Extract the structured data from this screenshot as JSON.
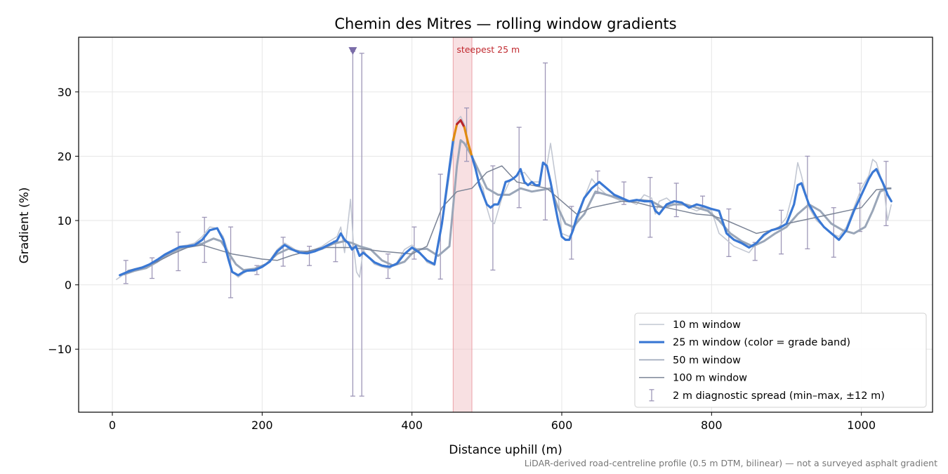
{
  "chart_data": {
    "type": "line",
    "title": "Chemin des Mitres — rolling window gradients",
    "xlabel": "Distance uphill (m)",
    "ylabel": "Gradient (%)",
    "xlim": [
      -45,
      1095
    ],
    "ylim": [
      -19.8,
      38.5
    ],
    "xticks": [
      0,
      200,
      400,
      600,
      800,
      1000
    ],
    "yticks": [
      -10,
      0,
      10,
      20,
      30
    ],
    "ytick_labels": [
      "−10",
      "0",
      "10",
      "20",
      "30"
    ],
    "grid": true,
    "legend_position": "lower-right",
    "footnote": "LiDAR-derived road-centreline profile (0.5 m DTM, bilinear) — not a surveyed asphalt gradient",
    "highlight": {
      "label": "steepest 25 m",
      "x_start": 455,
      "x_end": 480
    },
    "peak_marker": {
      "x": 321,
      "y": 36.3
    },
    "grade_band_colors": {
      "default": "#3a78d4",
      "steep": "#e08a10",
      "very_steep": "#b8262c"
    },
    "series": [
      {
        "name": "10 m window",
        "color": "#c2c7d2",
        "x": [
          5,
          10,
          20,
          30,
          40,
          50,
          60,
          70,
          80,
          90,
          100,
          110,
          120,
          130,
          140,
          148,
          155,
          160,
          168,
          175,
          180,
          190,
          200,
          210,
          220,
          230,
          240,
          250,
          260,
          270,
          280,
          290,
          300,
          305,
          310,
          315,
          318,
          322,
          326,
          330,
          335,
          340,
          350,
          360,
          370,
          380,
          390,
          400,
          410,
          420,
          430,
          440,
          450,
          455,
          460,
          465,
          470,
          475,
          480,
          485,
          490,
          495,
          500,
          505,
          510,
          520,
          530,
          540,
          550,
          560,
          570,
          575,
          580,
          585,
          590,
          595,
          600,
          610,
          620,
          630,
          640,
          650,
          660,
          670,
          680,
          690,
          700,
          710,
          720,
          725,
          730,
          740,
          750,
          760,
          770,
          780,
          790,
          800,
          810,
          820,
          830,
          840,
          850,
          860,
          870,
          880,
          890,
          900,
          910,
          915,
          920,
          930,
          940,
          950,
          960,
          970,
          980,
          990,
          1000,
          1010,
          1015,
          1020,
          1030,
          1035,
          1040
        ],
        "y": [
          0.8,
          1.2,
          2.0,
          2.3,
          2.6,
          3.0,
          3.8,
          4.5,
          5.3,
          6.0,
          6.2,
          6.5,
          7.5,
          9.0,
          8.8,
          7.5,
          5.0,
          2.0,
          1.2,
          1.8,
          2.2,
          2.1,
          2.8,
          3.8,
          5.5,
          6.5,
          5.8,
          5.0,
          5.0,
          5.5,
          6.0,
          6.8,
          7.5,
          9.0,
          5.0,
          10.0,
          13.3,
          6.0,
          2.0,
          1.2,
          5.5,
          4.5,
          3.2,
          2.8,
          2.5,
          3.5,
          5.5,
          6.2,
          5.2,
          3.5,
          3.0,
          9.0,
          17.0,
          21.0,
          25.5,
          26.2,
          25.0,
          22.0,
          20.0,
          18.0,
          16.0,
          15.0,
          12.0,
          10.0,
          9.5,
          13.5,
          16.0,
          17.0,
          17.5,
          16.0,
          16.0,
          19.0,
          18.5,
          22.0,
          18.0,
          14.0,
          8.0,
          7.5,
          9.5,
          13.5,
          16.5,
          15.0,
          14.0,
          13.5,
          13.0,
          13.0,
          12.5,
          14.0,
          13.5,
          11.0,
          13.0,
          13.5,
          12.5,
          12.5,
          12.0,
          11.5,
          12.0,
          11.5,
          8.0,
          7.0,
          6.0,
          5.5,
          5.0,
          6.5,
          7.5,
          8.5,
          9.0,
          10.5,
          15.0,
          19.0,
          17.0,
          12.0,
          10.0,
          9.0,
          8.0,
          7.5,
          9.0,
          12.0,
          15.0,
          17.0,
          19.5,
          19.0,
          15.0,
          10.0,
          12.5
        ]
      },
      {
        "name": "25 m window (color = grade band)",
        "color": "#3a78d4",
        "x": [
          10,
          20,
          30,
          40,
          50,
          60,
          70,
          80,
          90,
          100,
          110,
          120,
          130,
          140,
          148,
          155,
          160,
          168,
          175,
          180,
          190,
          200,
          210,
          220,
          230,
          240,
          250,
          260,
          270,
          280,
          290,
          300,
          305,
          310,
          315,
          320,
          325,
          330,
          335,
          340,
          350,
          360,
          370,
          380,
          390,
          400,
          410,
          420,
          430,
          440,
          448,
          455,
          460,
          465,
          470,
          475,
          480,
          485,
          490,
          495,
          500,
          505,
          510,
          515,
          520,
          525,
          530,
          535,
          540,
          545,
          550,
          555,
          560,
          565,
          570,
          575,
          580,
          585,
          590,
          595,
          600,
          605,
          610,
          615,
          620,
          630,
          640,
          650,
          660,
          670,
          680,
          690,
          700,
          710,
          720,
          725,
          730,
          740,
          750,
          760,
          770,
          780,
          790,
          800,
          810,
          820,
          830,
          840,
          850,
          860,
          870,
          880,
          890,
          900,
          910,
          915,
          920,
          930,
          940,
          950,
          960,
          970,
          980,
          990,
          1000,
          1010,
          1015,
          1020,
          1030,
          1035,
          1040
        ],
        "y": [
          1.5,
          2.0,
          2.4,
          2.7,
          3.2,
          3.9,
          4.7,
          5.3,
          5.9,
          6.0,
          6.2,
          7.0,
          8.5,
          8.8,
          7.0,
          4.0,
          2.0,
          1.5,
          2.0,
          2.2,
          2.3,
          2.8,
          3.6,
          5.2,
          6.2,
          5.5,
          5.0,
          4.9,
          5.2,
          5.7,
          6.3,
          6.9,
          8.0,
          7.0,
          6.5,
          5.5,
          6.0,
          4.5,
          5.0,
          4.5,
          3.5,
          3.0,
          2.8,
          3.3,
          4.8,
          5.8,
          5.0,
          3.8,
          3.2,
          9.5,
          16.5,
          22.5,
          25.0,
          25.6,
          24.5,
          22.0,
          20.0,
          18.0,
          15.5,
          14.0,
          12.5,
          12.0,
          12.5,
          12.5,
          14.0,
          16.0,
          16.2,
          16.5,
          17.0,
          18.0,
          16.0,
          15.5,
          16.0,
          15.5,
          15.5,
          19.0,
          18.5,
          16.0,
          13.0,
          10.0,
          7.5,
          7.0,
          7.0,
          8.5,
          10.5,
          13.5,
          15.0,
          16.0,
          15.0,
          14.0,
          13.5,
          13.0,
          13.2,
          13.0,
          13.0,
          11.5,
          11.0,
          12.5,
          13.0,
          12.8,
          12.0,
          12.5,
          12.2,
          11.8,
          11.5,
          8.0,
          7.0,
          6.5,
          5.8,
          6.5,
          7.8,
          8.5,
          8.8,
          9.5,
          12.5,
          15.5,
          15.8,
          12.5,
          10.5,
          9.0,
          8.0,
          7.0,
          8.5,
          11.5,
          14.0,
          16.5,
          17.5,
          18.0,
          15.5,
          14.0,
          13.0
        ]
      },
      {
        "name": "50 m window",
        "color": "#9aa6b8",
        "x": [
          15,
          30,
          45,
          60,
          75,
          90,
          105,
          120,
          135,
          145,
          155,
          165,
          175,
          190,
          205,
          220,
          235,
          250,
          265,
          280,
          295,
          310,
          320,
          330,
          345,
          360,
          375,
          390,
          405,
          420,
          435,
          450,
          460,
          465,
          470,
          480,
          490,
          500,
          515,
          530,
          545,
          560,
          575,
          585,
          595,
          605,
          615,
          630,
          645,
          660,
          675,
          690,
          705,
          720,
          735,
          750,
          765,
          780,
          795,
          810,
          825,
          840,
          855,
          870,
          885,
          900,
          915,
          930,
          945,
          960,
          975,
          990,
          1005,
          1015,
          1025,
          1035,
          1040
        ],
        "y": [
          1.6,
          2.2,
          2.6,
          3.6,
          4.8,
          5.6,
          6.0,
          6.4,
          7.2,
          6.8,
          5.0,
          3.2,
          2.3,
          2.5,
          3.2,
          4.8,
          5.6,
          5.2,
          5.1,
          5.6,
          6.4,
          6.8,
          6.5,
          6.0,
          5.5,
          3.8,
          3.0,
          3.6,
          5.5,
          5.6,
          4.5,
          6.0,
          18.5,
          22.5,
          22.0,
          20.0,
          17.5,
          15.0,
          14.0,
          14.0,
          15.0,
          14.5,
          14.8,
          15.0,
          12.0,
          9.5,
          9.0,
          11.0,
          14.5,
          14.0,
          13.5,
          13.0,
          13.2,
          13.0,
          12.0,
          12.5,
          12.5,
          12.0,
          11.5,
          10.0,
          8.0,
          6.8,
          6.0,
          6.8,
          8.0,
          9.0,
          11.0,
          12.5,
          11.5,
          9.5,
          8.5,
          8.0,
          9.0,
          11.5,
          14.5,
          15.0,
          15.0
        ]
      },
      {
        "name": "100 m window",
        "color": "#7b8496",
        "x": [
          20,
          40,
          60,
          80,
          100,
          120,
          140,
          160,
          180,
          200,
          220,
          240,
          260,
          280,
          300,
          320,
          340,
          360,
          380,
          400,
          420,
          440,
          460,
          480,
          500,
          520,
          540,
          560,
          580,
          600,
          620,
          640,
          660,
          680,
          700,
          720,
          740,
          760,
          780,
          800,
          820,
          840,
          860,
          880,
          900,
          920,
          940,
          960,
          980,
          1000,
          1020,
          1040
        ],
        "y": [
          2.2,
          2.8,
          3.6,
          4.8,
          5.8,
          6.2,
          5.5,
          4.8,
          4.4,
          4.0,
          3.8,
          4.6,
          5.2,
          5.8,
          5.8,
          5.8,
          5.5,
          5.2,
          5.0,
          4.8,
          6.0,
          12.0,
          14.5,
          15.0,
          17.5,
          18.5,
          16.0,
          15.5,
          15.0,
          13.0,
          11.0,
          12.0,
          12.5,
          13.0,
          12.8,
          12.2,
          12.0,
          11.5,
          11.0,
          10.8,
          10.0,
          9.0,
          8.0,
          8.5,
          9.5,
          10.0,
          10.5,
          11.0,
          11.5,
          12.0,
          14.8,
          15.0
        ]
      }
    ],
    "diagnostic_spread": {
      "name": "2 m diagnostic spread (min–max, ±12 m)",
      "color": "#9e97b8",
      "points": [
        {
          "x": 18,
          "min": 0.2,
          "max": 3.8
        },
        {
          "x": 53,
          "min": 1.0,
          "max": 4.2
        },
        {
          "x": 88,
          "min": 2.2,
          "max": 8.2
        },
        {
          "x": 123,
          "min": 3.5,
          "max": 10.5
        },
        {
          "x": 158,
          "min": -2.0,
          "max": 9.0
        },
        {
          "x": 193,
          "min": 1.6,
          "max": 3.0
        },
        {
          "x": 228,
          "min": 2.9,
          "max": 7.4
        },
        {
          "x": 263,
          "min": 3.0,
          "max": 6.0
        },
        {
          "x": 298,
          "min": 3.6,
          "max": 6.8
        },
        {
          "x": 321,
          "min": -17.3,
          "max": 36.3
        },
        {
          "x": 333,
          "min": -17.3,
          "max": 36.0
        },
        {
          "x": 368,
          "min": 1.0,
          "max": 4.8
        },
        {
          "x": 403,
          "min": 4.0,
          "max": 9.0
        },
        {
          "x": 438,
          "min": 0.9,
          "max": 17.2
        },
        {
          "x": 473,
          "min": 19.2,
          "max": 27.5
        },
        {
          "x": 508,
          "min": 2.3,
          "max": 18.5
        },
        {
          "x": 543,
          "min": 12.0,
          "max": 24.5
        },
        {
          "x": 578,
          "min": 10.1,
          "max": 34.5
        },
        {
          "x": 613,
          "min": 4.0,
          "max": 12.2
        },
        {
          "x": 648,
          "min": 14.2,
          "max": 17.7
        },
        {
          "x": 683,
          "min": 12.5,
          "max": 16.0
        },
        {
          "x": 718,
          "min": 7.4,
          "max": 16.7
        },
        {
          "x": 753,
          "min": 10.6,
          "max": 15.8
        },
        {
          "x": 788,
          "min": 12.0,
          "max": 13.8
        },
        {
          "x": 823,
          "min": 4.4,
          "max": 11.8
        },
        {
          "x": 858,
          "min": 3.8,
          "max": 6.6
        },
        {
          "x": 893,
          "min": 4.8,
          "max": 11.6
        },
        {
          "x": 928,
          "min": 5.6,
          "max": 20.0
        },
        {
          "x": 963,
          "min": 4.3,
          "max": 12.0
        },
        {
          "x": 998,
          "min": 8.3,
          "max": 15.8
        },
        {
          "x": 1033,
          "min": 9.2,
          "max": 19.2
        }
      ]
    }
  }
}
